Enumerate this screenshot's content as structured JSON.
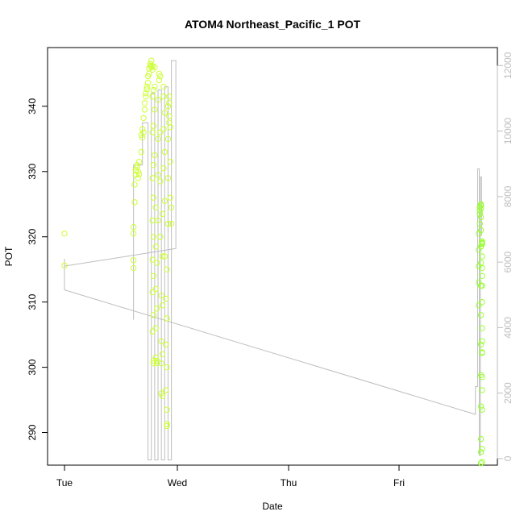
{
  "chart_data": {
    "type": "scatter",
    "title": "ATOM4 Northeast_Pacific_1 POT",
    "xlabel": "Date",
    "ylabel": "POT",
    "x_ticks": [
      "Tue",
      "Wed",
      "Thu",
      "Fri"
    ],
    "y_ticks": [
      290,
      300,
      310,
      320,
      330,
      340
    ],
    "y_right_ticks": [
      0,
      2000,
      4000,
      6000,
      8000,
      10000,
      12000
    ],
    "xlim": [
      0,
      3.75
    ],
    "ylim": [
      285,
      349
    ],
    "y_right_lim": [
      -200,
      12550
    ],
    "grid": false,
    "colors": {
      "points_day1": "#ccff33",
      "points_day4": "#99ff33",
      "line": "#bebebe",
      "right_axis": "#bebebe"
    },
    "points": [
      {
        "x": 0.0,
        "y": 320.5
      },
      {
        "x": 0.0,
        "y": 315.6
      },
      {
        "x": 0.62,
        "y": 315.2
      },
      {
        "x": 0.62,
        "y": 316.4
      },
      {
        "x": 0.62,
        "y": 320.5
      },
      {
        "x": 0.62,
        "y": 321.5
      },
      {
        "x": 0.63,
        "y": 325.3
      },
      {
        "x": 0.63,
        "y": 328.0
      },
      {
        "x": 0.64,
        "y": 329.5
      },
      {
        "x": 0.64,
        "y": 330.2
      },
      {
        "x": 0.65,
        "y": 330.6
      },
      {
        "x": 0.65,
        "y": 331.0
      },
      {
        "x": 0.66,
        "y": 329.0
      },
      {
        "x": 0.66,
        "y": 330.0
      },
      {
        "x": 0.67,
        "y": 331.5
      },
      {
        "x": 0.67,
        "y": 329.6
      },
      {
        "x": 0.69,
        "y": 333.0
      },
      {
        "x": 0.69,
        "y": 335.6
      },
      {
        "x": 0.7,
        "y": 336.5
      },
      {
        "x": 0.7,
        "y": 335.2
      },
      {
        "x": 0.71,
        "y": 336.0
      },
      {
        "x": 0.71,
        "y": 338.2
      },
      {
        "x": 0.72,
        "y": 339.5
      },
      {
        "x": 0.72,
        "y": 340.5
      },
      {
        "x": 0.73,
        "y": 341.5
      },
      {
        "x": 0.73,
        "y": 342.0
      },
      {
        "x": 0.74,
        "y": 342.6
      },
      {
        "x": 0.74,
        "y": 343.0
      },
      {
        "x": 0.75,
        "y": 343.6
      },
      {
        "x": 0.75,
        "y": 344.6
      },
      {
        "x": 0.76,
        "y": 345.0
      },
      {
        "x": 0.76,
        "y": 345.8
      },
      {
        "x": 0.77,
        "y": 346.2
      },
      {
        "x": 0.77,
        "y": 346.5
      },
      {
        "x": 0.78,
        "y": 347.0
      },
      {
        "x": 0.78,
        "y": 346.0
      },
      {
        "x": 0.79,
        "y": 345.6
      },
      {
        "x": 0.79,
        "y": 346.2
      },
      {
        "x": 0.79,
        "y": 341.5
      },
      {
        "x": 0.79,
        "y": 336.0
      },
      {
        "x": 0.79,
        "y": 329.0
      },
      {
        "x": 0.79,
        "y": 322.5
      },
      {
        "x": 0.79,
        "y": 316.5
      },
      {
        "x": 0.79,
        "y": 311.5
      },
      {
        "x": 0.79,
        "y": 305.5
      },
      {
        "x": 0.8,
        "y": 301.0
      },
      {
        "x": 0.8,
        "y": 300.6
      },
      {
        "x": 0.8,
        "y": 308.0
      },
      {
        "x": 0.8,
        "y": 314.0
      },
      {
        "x": 0.8,
        "y": 320.0
      },
      {
        "x": 0.8,
        "y": 326.0
      },
      {
        "x": 0.8,
        "y": 331.0
      },
      {
        "x": 0.8,
        "y": 337.0
      },
      {
        "x": 0.8,
        "y": 342.5
      },
      {
        "x": 0.81,
        "y": 343.0
      },
      {
        "x": 0.81,
        "y": 346.0
      },
      {
        "x": 0.81,
        "y": 339.5
      },
      {
        "x": 0.81,
        "y": 332.5
      },
      {
        "x": 0.82,
        "y": 324.5
      },
      {
        "x": 0.82,
        "y": 318.5
      },
      {
        "x": 0.82,
        "y": 312.0
      },
      {
        "x": 0.82,
        "y": 306.0
      },
      {
        "x": 0.82,
        "y": 301.5
      },
      {
        "x": 0.83,
        "y": 301.0
      },
      {
        "x": 0.83,
        "y": 300.6
      },
      {
        "x": 0.83,
        "y": 309.0
      },
      {
        "x": 0.83,
        "y": 316.0
      },
      {
        "x": 0.84,
        "y": 322.5
      },
      {
        "x": 0.84,
        "y": 329.5
      },
      {
        "x": 0.84,
        "y": 335.0
      },
      {
        "x": 0.84,
        "y": 341.0
      },
      {
        "x": 0.85,
        "y": 344.0
      },
      {
        "x": 0.85,
        "y": 345.0
      },
      {
        "x": 0.86,
        "y": 344.6
      },
      {
        "x": 0.86,
        "y": 336.0
      },
      {
        "x": 0.86,
        "y": 328.5
      },
      {
        "x": 0.86,
        "y": 320.0
      },
      {
        "x": 0.87,
        "y": 311.0
      },
      {
        "x": 0.87,
        "y": 304.0
      },
      {
        "x": 0.87,
        "y": 300.6
      },
      {
        "x": 0.87,
        "y": 296.0
      },
      {
        "x": 0.88,
        "y": 295.6
      },
      {
        "x": 0.88,
        "y": 302.0
      },
      {
        "x": 0.88,
        "y": 309.5
      },
      {
        "x": 0.88,
        "y": 317.0
      },
      {
        "x": 0.88,
        "y": 323.5
      },
      {
        "x": 0.89,
        "y": 330.5
      },
      {
        "x": 0.89,
        "y": 336.5
      },
      {
        "x": 0.89,
        "y": 341.5
      },
      {
        "x": 0.89,
        "y": 343.0
      },
      {
        "x": 0.9,
        "y": 339.0
      },
      {
        "x": 0.9,
        "y": 333.0
      },
      {
        "x": 0.9,
        "y": 325.5
      },
      {
        "x": 0.9,
        "y": 317.0
      },
      {
        "x": 0.91,
        "y": 310.5
      },
      {
        "x": 0.91,
        "y": 303.5
      },
      {
        "x": 0.91,
        "y": 296.5
      },
      {
        "x": 0.92,
        "y": 291.3
      },
      {
        "x": 0.92,
        "y": 291.0
      },
      {
        "x": 0.92,
        "y": 293.5
      },
      {
        "x": 0.92,
        "y": 300.0
      },
      {
        "x": 0.92,
        "y": 307.5
      },
      {
        "x": 0.92,
        "y": 315.0
      },
      {
        "x": 0.93,
        "y": 322.0
      },
      {
        "x": 0.93,
        "y": 329.0
      },
      {
        "x": 0.93,
        "y": 335.0
      },
      {
        "x": 0.93,
        "y": 340.0
      },
      {
        "x": 0.94,
        "y": 341.5
      },
      {
        "x": 0.94,
        "y": 340.5
      },
      {
        "x": 0.94,
        "y": 338.5
      },
      {
        "x": 0.94,
        "y": 337.5
      },
      {
        "x": 0.95,
        "y": 336.8
      },
      {
        "x": 0.95,
        "y": 331.5
      },
      {
        "x": 0.95,
        "y": 326.0
      },
      {
        "x": 0.96,
        "y": 324.5
      },
      {
        "x": 0.96,
        "y": 322.0
      },
      {
        "x": 3.72,
        "y": 309.5
      },
      {
        "x": 3.72,
        "y": 313.0
      },
      {
        "x": 3.72,
        "y": 315.5
      },
      {
        "x": 3.72,
        "y": 318.0
      },
      {
        "x": 3.72,
        "y": 320.5
      },
      {
        "x": 3.73,
        "y": 322.0
      },
      {
        "x": 3.73,
        "y": 323.5
      },
      {
        "x": 3.73,
        "y": 324.0
      },
      {
        "x": 3.73,
        "y": 324.6
      },
      {
        "x": 3.74,
        "y": 325.0
      },
      {
        "x": 3.74,
        "y": 324.3
      },
      {
        "x": 3.74,
        "y": 324.8
      },
      {
        "x": 3.74,
        "y": 323.0
      },
      {
        "x": 3.74,
        "y": 321.0
      },
      {
        "x": 3.74,
        "y": 318.5
      },
      {
        "x": 3.74,
        "y": 316.0
      },
      {
        "x": 3.74,
        "y": 312.5
      },
      {
        "x": 3.74,
        "y": 308.0
      },
      {
        "x": 3.74,
        "y": 303.5
      },
      {
        "x": 3.74,
        "y": 298.8
      },
      {
        "x": 3.74,
        "y": 294.0
      },
      {
        "x": 3.74,
        "y": 289.0
      },
      {
        "x": 3.74,
        "y": 287.0
      },
      {
        "x": 3.74,
        "y": 285.3
      },
      {
        "x": 3.75,
        "y": 285.5
      },
      {
        "x": 3.75,
        "y": 287.5
      },
      {
        "x": 3.75,
        "y": 293.5
      },
      {
        "x": 3.75,
        "y": 296.5
      },
      {
        "x": 3.75,
        "y": 298.5
      },
      {
        "x": 3.75,
        "y": 302.3
      },
      {
        "x": 3.75,
        "y": 306.0
      },
      {
        "x": 3.75,
        "y": 310.0
      },
      {
        "x": 3.75,
        "y": 314.0
      },
      {
        "x": 3.75,
        "y": 317.0
      },
      {
        "x": 3.75,
        "y": 319.0
      },
      {
        "x": 3.75,
        "y": 319.3
      },
      {
        "x": 3.75,
        "y": 315.2
      },
      {
        "x": 3.75,
        "y": 312.5
      },
      {
        "x": 3.75,
        "y": 304.0
      },
      {
        "x": 3.75,
        "y": 302.2
      },
      {
        "x": 3.75,
        "y": 318.9
      },
      {
        "x": 3.75,
        "y": 319.1
      }
    ],
    "line_right": [
      {
        "x": 0.0,
        "y": 6100
      },
      {
        "x": 0.0,
        "y": 5150
      },
      {
        "x": 3.69,
        "y": 1350
      },
      {
        "x": 3.69,
        "y": 2200
      },
      {
        "x": 3.71,
        "y": 2200
      },
      {
        "x": 3.71,
        "y": 8850
      },
      {
        "x": 3.725,
        "y": 8850
      },
      {
        "x": 3.725,
        "y": 100
      },
      {
        "x": 3.735,
        "y": 100
      },
      {
        "x": 3.735,
        "y": 8600
      },
      {
        "x": 3.745,
        "y": 8600
      },
      {
        "x": 3.745,
        "y": 6800
      }
    ],
    "line_left": [
      {
        "x": 0.0,
        "y": 315.5
      },
      {
        "x": 1.0,
        "y": 318.2
      },
      {
        "x": 1.0,
        "y": 347.0
      },
      {
        "x": 0.96,
        "y": 347.0
      },
      {
        "x": 0.96,
        "y": 285.8
      },
      {
        "x": 0.93,
        "y": 285.8
      },
      {
        "x": 0.93,
        "y": 343.0
      },
      {
        "x": 0.9,
        "y": 343.0
      },
      {
        "x": 0.9,
        "y": 285.8
      },
      {
        "x": 0.87,
        "y": 285.8
      },
      {
        "x": 0.87,
        "y": 342.5
      },
      {
        "x": 0.84,
        "y": 342.5
      },
      {
        "x": 0.84,
        "y": 285.8
      },
      {
        "x": 0.81,
        "y": 285.8
      },
      {
        "x": 0.81,
        "y": 342.0
      },
      {
        "x": 0.78,
        "y": 342.0
      },
      {
        "x": 0.78,
        "y": 285.8
      },
      {
        "x": 0.75,
        "y": 285.8
      },
      {
        "x": 0.75,
        "y": 337.5
      },
      {
        "x": 0.7,
        "y": 337.5
      },
      {
        "x": 0.7,
        "y": 331.0
      },
      {
        "x": 0.62,
        "y": 331.0
      },
      {
        "x": 0.62,
        "y": 307.3
      }
    ]
  }
}
